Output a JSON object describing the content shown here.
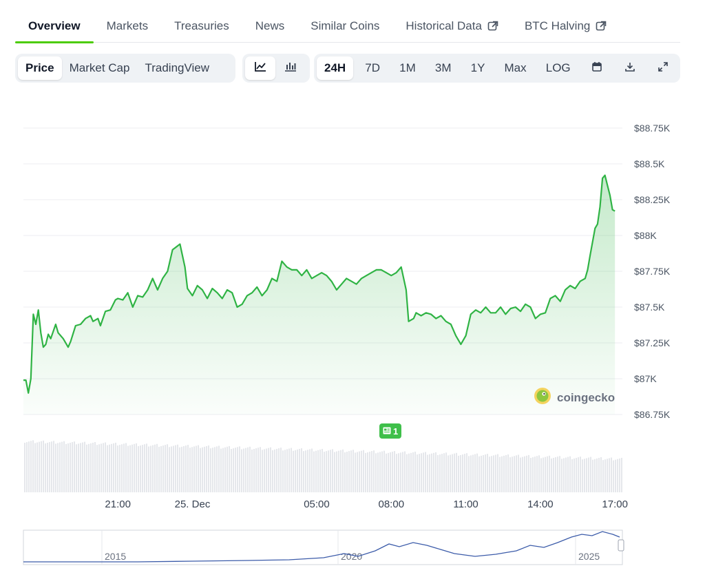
{
  "tabs": [
    {
      "label": "Overview",
      "active": true
    },
    {
      "label": "Markets"
    },
    {
      "label": "Treasuries"
    },
    {
      "label": "News"
    },
    {
      "label": "Similar Coins"
    },
    {
      "label": "Historical Data",
      "external": true
    },
    {
      "label": "BTC Halving",
      "external": true
    }
  ],
  "toolbar": {
    "views": [
      "Price",
      "Market Cap",
      "TradingView"
    ],
    "active_view": "Price",
    "chart_types": [
      "line-chart-icon",
      "candlestick-icon"
    ],
    "ranges": [
      "24H",
      "7D",
      "1M",
      "3M",
      "1Y",
      "Max",
      "LOG"
    ],
    "active_range": "24H",
    "tools": [
      "calendar-icon",
      "download-icon",
      "fullscreen-icon"
    ]
  },
  "brand": {
    "name": "coingecko"
  },
  "event_marker": {
    "count": "1"
  },
  "chart_data": {
    "type": "area",
    "y_ticks": [
      "$88.75K",
      "$88.5K",
      "$88.25K",
      "$88K",
      "$87.75K",
      "$87.5K",
      "$87.25K",
      "$87K",
      "$86.75K"
    ],
    "ylim": [
      86750,
      88750
    ],
    "x_ticks": [
      {
        "label": "21:00",
        "hour": 21
      },
      {
        "label": "25. Dec",
        "hour": 24
      },
      {
        "label": "05:00",
        "hour": 29
      },
      {
        "label": "08:00",
        "hour": 32
      },
      {
        "label": "11:00",
        "hour": 35
      },
      {
        "label": "14:00",
        "hour": 38
      },
      {
        "label": "17:00",
        "hour": 41
      }
    ],
    "xlim": [
      17.2,
      41.3
    ],
    "line_color": "#2fb344",
    "series": [
      {
        "values": [
          [
            17.2,
            86990
          ],
          [
            17.3,
            86990
          ],
          [
            17.4,
            86900
          ],
          [
            17.5,
            87000
          ],
          [
            17.6,
            87450
          ],
          [
            17.7,
            87380
          ],
          [
            17.8,
            87480
          ],
          [
            17.9,
            87320
          ],
          [
            18.0,
            87220
          ],
          [
            18.1,
            87240
          ],
          [
            18.2,
            87310
          ],
          [
            18.3,
            87280
          ],
          [
            18.5,
            87380
          ],
          [
            18.6,
            87320
          ],
          [
            18.8,
            87280
          ],
          [
            19.0,
            87220
          ],
          [
            19.1,
            87260
          ],
          [
            19.3,
            87370
          ],
          [
            19.5,
            87380
          ],
          [
            19.7,
            87420
          ],
          [
            19.9,
            87440
          ],
          [
            20.0,
            87400
          ],
          [
            20.2,
            87420
          ],
          [
            20.3,
            87370
          ],
          [
            20.5,
            87470
          ],
          [
            20.7,
            87480
          ],
          [
            20.9,
            87550
          ],
          [
            21.0,
            87560
          ],
          [
            21.2,
            87550
          ],
          [
            21.4,
            87600
          ],
          [
            21.6,
            87500
          ],
          [
            21.8,
            87580
          ],
          [
            22.0,
            87570
          ],
          [
            22.2,
            87620
          ],
          [
            22.4,
            87700
          ],
          [
            22.6,
            87620
          ],
          [
            22.8,
            87700
          ],
          [
            23.0,
            87750
          ],
          [
            23.2,
            87900
          ],
          [
            23.5,
            87940
          ],
          [
            23.7,
            87780
          ],
          [
            23.8,
            87630
          ],
          [
            24.0,
            87580
          ],
          [
            24.2,
            87650
          ],
          [
            24.4,
            87620
          ],
          [
            24.6,
            87560
          ],
          [
            24.8,
            87630
          ],
          [
            25.0,
            87600
          ],
          [
            25.2,
            87560
          ],
          [
            25.4,
            87620
          ],
          [
            25.6,
            87600
          ],
          [
            25.8,
            87500
          ],
          [
            26.0,
            87520
          ],
          [
            26.2,
            87580
          ],
          [
            26.4,
            87600
          ],
          [
            26.6,
            87640
          ],
          [
            26.8,
            87580
          ],
          [
            27.0,
            87620
          ],
          [
            27.2,
            87700
          ],
          [
            27.4,
            87680
          ],
          [
            27.6,
            87820
          ],
          [
            27.8,
            87780
          ],
          [
            28.0,
            87760
          ],
          [
            28.2,
            87760
          ],
          [
            28.4,
            87720
          ],
          [
            28.6,
            87760
          ],
          [
            28.8,
            87700
          ],
          [
            29.0,
            87720
          ],
          [
            29.2,
            87740
          ],
          [
            29.4,
            87720
          ],
          [
            29.6,
            87680
          ],
          [
            29.8,
            87620
          ],
          [
            30.0,
            87660
          ],
          [
            30.2,
            87700
          ],
          [
            30.4,
            87680
          ],
          [
            30.6,
            87660
          ],
          [
            30.8,
            87700
          ],
          [
            31.0,
            87720
          ],
          [
            31.2,
            87740
          ],
          [
            31.4,
            87760
          ],
          [
            31.6,
            87760
          ],
          [
            31.8,
            87740
          ],
          [
            32.0,
            87720
          ],
          [
            32.2,
            87740
          ],
          [
            32.4,
            87780
          ],
          [
            32.5,
            87700
          ],
          [
            32.6,
            87620
          ],
          [
            32.7,
            87400
          ],
          [
            32.9,
            87420
          ],
          [
            33.0,
            87460
          ],
          [
            33.2,
            87440
          ],
          [
            33.4,
            87460
          ],
          [
            33.6,
            87450
          ],
          [
            33.8,
            87420
          ],
          [
            34.0,
            87440
          ],
          [
            34.2,
            87400
          ],
          [
            34.4,
            87380
          ],
          [
            34.6,
            87300
          ],
          [
            34.8,
            87240
          ],
          [
            35.0,
            87300
          ],
          [
            35.2,
            87450
          ],
          [
            35.4,
            87480
          ],
          [
            35.6,
            87460
          ],
          [
            35.8,
            87500
          ],
          [
            36.0,
            87460
          ],
          [
            36.2,
            87460
          ],
          [
            36.4,
            87500
          ],
          [
            36.6,
            87450
          ],
          [
            36.8,
            87490
          ],
          [
            37.0,
            87500
          ],
          [
            37.2,
            87470
          ],
          [
            37.4,
            87520
          ],
          [
            37.6,
            87500
          ],
          [
            37.8,
            87420
          ],
          [
            38.0,
            87450
          ],
          [
            38.2,
            87460
          ],
          [
            38.4,
            87560
          ],
          [
            38.6,
            87580
          ],
          [
            38.8,
            87540
          ],
          [
            39.0,
            87620
          ],
          [
            39.2,
            87650
          ],
          [
            39.4,
            87630
          ],
          [
            39.6,
            87680
          ],
          [
            39.8,
            87700
          ],
          [
            39.9,
            87760
          ],
          [
            40.0,
            87860
          ],
          [
            40.2,
            88050
          ],
          [
            40.3,
            88080
          ],
          [
            40.4,
            88200
          ],
          [
            40.5,
            88400
          ],
          [
            40.6,
            88420
          ],
          [
            40.7,
            88350
          ],
          [
            40.8,
            88280
          ],
          [
            40.9,
            88180
          ],
          [
            41.0,
            88170
          ]
        ]
      }
    ],
    "navigator": {
      "year_labels": [
        "2015",
        "2020",
        "2025"
      ]
    }
  }
}
